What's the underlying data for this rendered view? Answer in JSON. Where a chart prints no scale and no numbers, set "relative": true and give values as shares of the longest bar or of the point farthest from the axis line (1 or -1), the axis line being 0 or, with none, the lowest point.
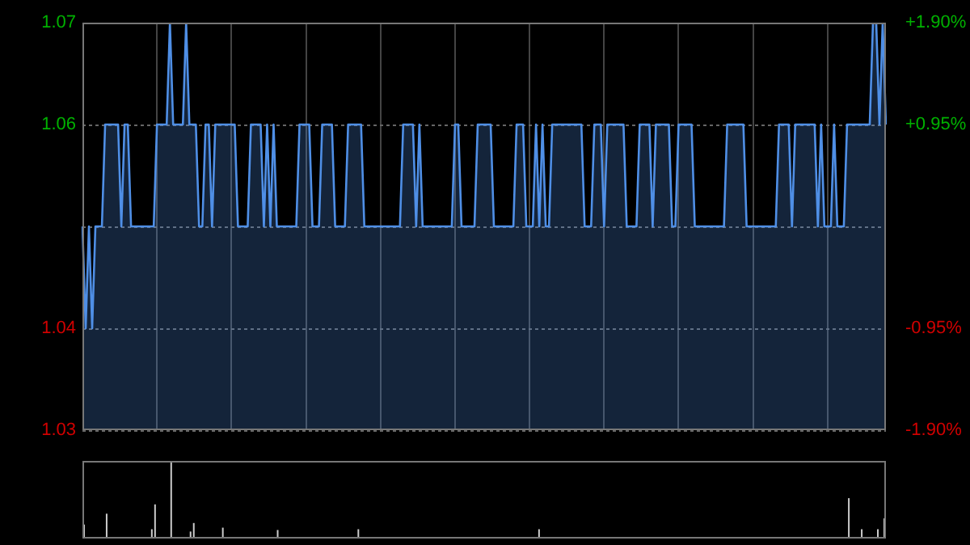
{
  "chart_data": [
    {
      "type": "area",
      "ylim": [
        1.03,
        1.07
      ],
      "yticks": [
        1.03,
        1.04,
        {
          "value": 1.05,
          "label": null
        },
        1.06,
        1.07
      ],
      "y2lim": [
        -1.9,
        1.9
      ],
      "y2ticks": [
        {
          "value": -1.9,
          "label": "-1.90%"
        },
        {
          "value": -0.95,
          "label": "-0.95%"
        },
        {
          "value": 0,
          "label": null
        },
        {
          "value": 0.95,
          "label": "+0.95%"
        },
        {
          "value": 1.9,
          "label": "+1.90%"
        }
      ],
      "grid": true,
      "legend": false,
      "marker": "none",
      "line_style": "solid",
      "categories": [
        null,
        null,
        null,
        null,
        null,
        null,
        null,
        null,
        null,
        null,
        null,
        null,
        null,
        null,
        null,
        null,
        null,
        null,
        null,
        null,
        null,
        null,
        null,
        null,
        null,
        null,
        null,
        null,
        null,
        null,
        null,
        null,
        null,
        null,
        null,
        null,
        null,
        null,
        null,
        null,
        null,
        null,
        null,
        null,
        null,
        null,
        null,
        null,
        null,
        null,
        null,
        null,
        null,
        null,
        null,
        null,
        null,
        null,
        null,
        null,
        null,
        null,
        null,
        null,
        null,
        null,
        null,
        null,
        null,
        null,
        null,
        null,
        null,
        null,
        null,
        null,
        null,
        null,
        null,
        null,
        null,
        null,
        null,
        null,
        null,
        null,
        null,
        null,
        null,
        null,
        null,
        null,
        null,
        null,
        null,
        null,
        null,
        null,
        null,
        null,
        null,
        null,
        null,
        null,
        null,
        null,
        null,
        null,
        null,
        null,
        null,
        null,
        null,
        null,
        null,
        null,
        null,
        null,
        null,
        null,
        null,
        null,
        null,
        null,
        null,
        null,
        null,
        null,
        null,
        null,
        null,
        null,
        null,
        null,
        null,
        null,
        null,
        null,
        null,
        null,
        null,
        null,
        null,
        null,
        null,
        null,
        null,
        null,
        null,
        null,
        null,
        null,
        null,
        null,
        null,
        null,
        null,
        null,
        null,
        null,
        null,
        null,
        null,
        null,
        null,
        null,
        null,
        null,
        null,
        null,
        null,
        null,
        null,
        null,
        null,
        null,
        null,
        null,
        null,
        null,
        null,
        null,
        null,
        null,
        null,
        null,
        null,
        null,
        null,
        null,
        null,
        null,
        null,
        null,
        null,
        null,
        null,
        null,
        null,
        null,
        null,
        null,
        null,
        null,
        null,
        null,
        null,
        null,
        null,
        null,
        null,
        null,
        null,
        null,
        null,
        null,
        null,
        null,
        null,
        null,
        null,
        null,
        null,
        null,
        null,
        null,
        null,
        null,
        null,
        null,
        null,
        null,
        null,
        null,
        null,
        null,
        null,
        null,
        null,
        null,
        null,
        null,
        null,
        null,
        null,
        null,
        null,
        null,
        null
      ],
      "series": [
        {
          "color": "#4f8fe6",
          "values": [
            1.05,
            1.04,
            1.05,
            1.04,
            1.05,
            1.05,
            1.05,
            1.06,
            1.06,
            1.06,
            1.06,
            1.06,
            1.05,
            1.06,
            1.06,
            1.05,
            1.05,
            1.05,
            1.05,
            1.05,
            1.05,
            1.05,
            1.05,
            1.06,
            1.06,
            1.06,
            1.06,
            1.07,
            1.06,
            1.06,
            1.06,
            1.06,
            1.07,
            1.06,
            1.06,
            1.06,
            1.05,
            1.05,
            1.06,
            1.06,
            1.05,
            1.06,
            1.06,
            1.06,
            1.06,
            1.06,
            1.06,
            1.06,
            1.05,
            1.05,
            1.05,
            1.05,
            1.06,
            1.06,
            1.06,
            1.06,
            1.05,
            1.06,
            1.05,
            1.06,
            1.05,
            1.05,
            1.05,
            1.05,
            1.05,
            1.05,
            1.05,
            1.06,
            1.06,
            1.06,
            1.06,
            1.05,
            1.05,
            1.05,
            1.06,
            1.06,
            1.06,
            1.06,
            1.05,
            1.05,
            1.05,
            1.05,
            1.06,
            1.06,
            1.06,
            1.06,
            1.06,
            1.05,
            1.05,
            1.05,
            1.05,
            1.05,
            1.05,
            1.05,
            1.05,
            1.05,
            1.05,
            1.05,
            1.05,
            1.06,
            1.06,
            1.06,
            1.06,
            1.05,
            1.06,
            1.05,
            1.05,
            1.05,
            1.05,
            1.05,
            1.05,
            1.05,
            1.05,
            1.05,
            1.05,
            1.06,
            1.06,
            1.05,
            1.05,
            1.05,
            1.05,
            1.05,
            1.06,
            1.06,
            1.06,
            1.06,
            1.06,
            1.05,
            1.05,
            1.05,
            1.05,
            1.05,
            1.05,
            1.05,
            1.06,
            1.06,
            1.06,
            1.05,
            1.05,
            1.05,
            1.06,
            1.05,
            1.06,
            1.05,
            1.05,
            1.06,
            1.06,
            1.06,
            1.06,
            1.06,
            1.06,
            1.06,
            1.06,
            1.06,
            1.06,
            1.05,
            1.05,
            1.05,
            1.06,
            1.06,
            1.06,
            1.05,
            1.06,
            1.06,
            1.06,
            1.06,
            1.06,
            1.06,
            1.05,
            1.05,
            1.05,
            1.05,
            1.06,
            1.06,
            1.06,
            1.06,
            1.05,
            1.06,
            1.06,
            1.06,
            1.06,
            1.06,
            1.05,
            1.05,
            1.06,
            1.06,
            1.06,
            1.06,
            1.06,
            1.05,
            1.05,
            1.05,
            1.05,
            1.05,
            1.05,
            1.05,
            1.05,
            1.05,
            1.05,
            1.06,
            1.06,
            1.06,
            1.06,
            1.06,
            1.06,
            1.05,
            1.05,
            1.05,
            1.05,
            1.05,
            1.05,
            1.05,
            1.05,
            1.05,
            1.05,
            1.06,
            1.06,
            1.06,
            1.06,
            1.05,
            1.06,
            1.06,
            1.06,
            1.06,
            1.06,
            1.06,
            1.06,
            1.05,
            1.06,
            1.05,
            1.05,
            1.05,
            1.06,
            1.05,
            1.05,
            1.05,
            1.06,
            1.06,
            1.06,
            1.06,
            1.06,
            1.06,
            1.06,
            1.06,
            1.07,
            1.07,
            1.06,
            1.07,
            1.06
          ]
        }
      ]
    },
    {
      "type": "bar",
      "relative": true,
      "legend": false,
      "categories": [
        null,
        null,
        null,
        null,
        null,
        null,
        null,
        null,
        null,
        null,
        null,
        null,
        null,
        null,
        null,
        null,
        null,
        null,
        null,
        null,
        null,
        null,
        null,
        null,
        null,
        null,
        null,
        null,
        null,
        null,
        null,
        null,
        null,
        null,
        null,
        null,
        null,
        null,
        null,
        null,
        null,
        null,
        null,
        null,
        null,
        null,
        null,
        null,
        null,
        null,
        null,
        null,
        null,
        null,
        null,
        null,
        null,
        null,
        null,
        null,
        null,
        null,
        null,
        null,
        null,
        null,
        null,
        null,
        null,
        null,
        null,
        null,
        null,
        null,
        null,
        null,
        null,
        null,
        null,
        null,
        null,
        null,
        null,
        null,
        null,
        null,
        null,
        null,
        null,
        null,
        null,
        null,
        null,
        null,
        null,
        null,
        null,
        null,
        null,
        null,
        null,
        null,
        null,
        null,
        null,
        null,
        null,
        null,
        null,
        null,
        null,
        null,
        null,
        null,
        null,
        null,
        null,
        null,
        null,
        null,
        null,
        null,
        null,
        null,
        null,
        null,
        null,
        null,
        null,
        null,
        null,
        null,
        null,
        null,
        null,
        null,
        null,
        null,
        null,
        null,
        null,
        null,
        null,
        null,
        null,
        null,
        null,
        null,
        null,
        null,
        null,
        null,
        null,
        null,
        null,
        null,
        null,
        null,
        null,
        null,
        null,
        null,
        null,
        null,
        null,
        null,
        null,
        null,
        null,
        null,
        null,
        null,
        null,
        null,
        null,
        null,
        null,
        null,
        null,
        null,
        null,
        null,
        null,
        null,
        null,
        null,
        null,
        null,
        null,
        null,
        null,
        null,
        null,
        null,
        null,
        null,
        null,
        null,
        null,
        null,
        null,
        null,
        null,
        null,
        null,
        null,
        null,
        null,
        null,
        null,
        null,
        null,
        null,
        null,
        null,
        null,
        null,
        null,
        null,
        null,
        null,
        null,
        null,
        null,
        null,
        null,
        null,
        null,
        null,
        null,
        null,
        null,
        null,
        null,
        null,
        null,
        null,
        null,
        null,
        null,
        null,
        null,
        null,
        null,
        null,
        null,
        null,
        null,
        null
      ],
      "series": [
        {
          "color": "#cccccc",
          "values": [
            0.18,
            0.02,
            0.02,
            0.02,
            0.02,
            0.02,
            0.02,
            0.32,
            0.02,
            0.02,
            0.02,
            0.02,
            0.02,
            0.02,
            0.02,
            0.02,
            0.02,
            0.02,
            0.02,
            0.02,
            0.02,
            0.12,
            0.44,
            0.02,
            0.02,
            0.02,
            0.02,
            1,
            0.02,
            0.02,
            0.02,
            0.02,
            0.02,
            0.09,
            0.2,
            0.02,
            0.02,
            0.02,
            0.02,
            0.02,
            0.02,
            0.02,
            0.02,
            0.14,
            0.02,
            0.02,
            0.02,
            0.02,
            0.02,
            0.02,
            0.02,
            0.02,
            0.02,
            0.02,
            0.02,
            0.02,
            0.02,
            0.02,
            0.02,
            0.02,
            0.11,
            0.02,
            0.02,
            0.02,
            0.02,
            0.02,
            0.02,
            0.02,
            0.02,
            0.02,
            0.02,
            0.02,
            0.02,
            0.02,
            0.02,
            0.02,
            0.02,
            0.02,
            0.02,
            0.02,
            0.02,
            0.02,
            0.02,
            0.02,
            0.02,
            0.12,
            0.02,
            0.02,
            0.02,
            0.02,
            0.02,
            0.02,
            0.02,
            0.02,
            0.02,
            0.02,
            0.02,
            0.02,
            0.02,
            0.02,
            0.02,
            0.02,
            0.02,
            0.02,
            0.02,
            0.02,
            0.02,
            0.02,
            0.02,
            0.02,
            0.02,
            0.02,
            0.02,
            0.02,
            0.02,
            0.02,
            0.02,
            0.02,
            0.02,
            0.02,
            0.02,
            0.02,
            0.02,
            0.02,
            0.02,
            0.02,
            0.02,
            0.02,
            0.02,
            0.02,
            0.02,
            0.02,
            0.02,
            0.02,
            0.02,
            0.02,
            0.02,
            0.02,
            0.02,
            0.02,
            0.02,
            0.12,
            0.02,
            0.02,
            0.02,
            0.02,
            0.02,
            0.02,
            0.02,
            0.02,
            0.02,
            0.02,
            0.02,
            0.02,
            0.02,
            0.02,
            0.02,
            0.02,
            0.02,
            0.02,
            0.02,
            0.02,
            0.02,
            0.02,
            0.02,
            0.02,
            0.02,
            0.02,
            0.02,
            0.02,
            0.02,
            0.02,
            0.02,
            0.02,
            0.02,
            0.02,
            0.02,
            0.02,
            0.02,
            0.02,
            0.02,
            0.02,
            0.02,
            0.02,
            0.02,
            0.02,
            0.02,
            0.02,
            0.02,
            0.02,
            0.02,
            0.02,
            0.02,
            0.02,
            0.02,
            0.02,
            0.02,
            0.02,
            0.02,
            0.02,
            0.02,
            0.02,
            0.02,
            0.02,
            0.02,
            0.02,
            0.02,
            0.02,
            0.02,
            0.02,
            0.02,
            0.02,
            0.02,
            0.02,
            0.02,
            0.02,
            0.02,
            0.02,
            0.02,
            0.02,
            0.02,
            0.02,
            0.02,
            0.02,
            0.02,
            0.02,
            0.02,
            0.02,
            0.02,
            0.02,
            0.02,
            0.02,
            0.02,
            0.02,
            0.02,
            0.02,
            0.02,
            0.52,
            0.02,
            0.02,
            0.02,
            0.12,
            0.02,
            0.02,
            0.02,
            0.02,
            0.12,
            0.02,
            0.26
          ]
        }
      ]
    }
  ]
}
